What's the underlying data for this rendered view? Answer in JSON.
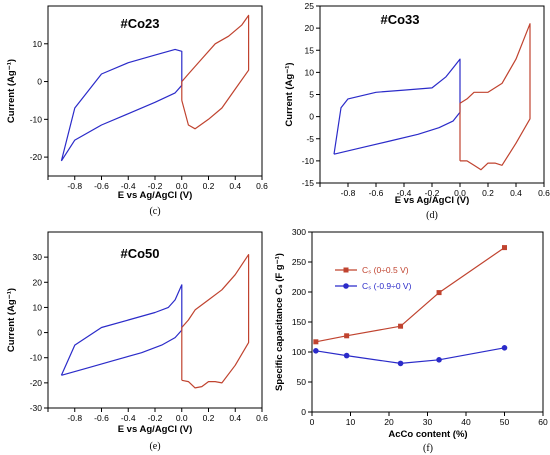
{
  "colors": {
    "red": "#c0432f",
    "blue": "#2b2bc9",
    "axis": "#000000"
  },
  "chart_data": [
    {
      "type": "line",
      "panel_title": "#Co23",
      "caption": "(c)",
      "xlabel": "E vs Ag/AgCl (V)",
      "ylabel": "Current (Ag⁻¹)",
      "xlim": [
        -1.0,
        0.6
      ],
      "ylim": [
        -25,
        20
      ],
      "xticks": [
        -1.0,
        -0.8,
        -0.6,
        -0.4,
        -0.2,
        0.0,
        0.2,
        0.4,
        0.6
      ],
      "xtick_labels": [
        "",
        "-0.8",
        "-0.6",
        "-0.4",
        "-0.2",
        "0.0",
        "0.2",
        "0.4",
        "0.6"
      ],
      "yticks": [
        -20,
        -10,
        0,
        10
      ],
      "ytick_labels": [
        "-20",
        "-10",
        "0",
        "10"
      ],
      "series": [
        {
          "color": "blue",
          "x": [
            -0.9,
            -0.8,
            -0.6,
            -0.4,
            -0.2,
            -0.05,
            0.0,
            0.0,
            -0.05,
            -0.2,
            -0.4,
            -0.6,
            -0.8,
            -0.9
          ],
          "y": [
            -21,
            -15.5,
            -11.5,
            -8.5,
            -5.5,
            -3,
            -1,
            8,
            8.5,
            7,
            5,
            2,
            -7,
            -21
          ]
        },
        {
          "color": "red",
          "x": [
            0.0,
            0.05,
            0.1,
            0.2,
            0.3,
            0.4,
            0.5,
            0.5,
            0.45,
            0.35,
            0.25,
            0.15,
            0.05,
            0.0,
            0.0
          ],
          "y": [
            -5,
            -11.5,
            -12.5,
            -10,
            -7,
            -2,
            3,
            17.5,
            15,
            12,
            10,
            6,
            2,
            0,
            -5
          ]
        }
      ]
    },
    {
      "type": "line",
      "panel_title": "#Co33",
      "caption": "(d)",
      "xlabel": "E vs Ag/AgCl (V)",
      "ylabel": "Current (Ag⁻¹)",
      "xlim": [
        -1.0,
        0.6
      ],
      "ylim": [
        -15,
        25
      ],
      "xticks": [
        -1.0,
        -0.8,
        -0.6,
        -0.4,
        -0.2,
        0.0,
        0.2,
        0.4,
        0.6
      ],
      "xtick_labels": [
        "",
        "-0.8",
        "-0.6",
        "-0.4",
        "-0.2",
        "0.0",
        "0.2",
        "0.4",
        "0.6"
      ],
      "yticks": [
        -15,
        -10,
        -5,
        0,
        5,
        10,
        15,
        20,
        25
      ],
      "ytick_labels": [
        "-15",
        "-10",
        "-5",
        "0",
        "5",
        "10",
        "15",
        "20",
        "25"
      ],
      "series": [
        {
          "color": "blue",
          "x": [
            -0.9,
            -0.7,
            -0.5,
            -0.3,
            -0.15,
            -0.05,
            0.0,
            0.0,
            -0.05,
            -0.1,
            -0.2,
            -0.4,
            -0.6,
            -0.8,
            -0.85,
            -0.9
          ],
          "y": [
            -8.5,
            -7,
            -5.5,
            -4,
            -2.5,
            -1,
            1,
            13,
            11,
            9,
            6.5,
            6,
            5.5,
            4,
            2,
            -8.5
          ]
        },
        {
          "color": "red",
          "x": [
            0.0,
            0.05,
            0.1,
            0.15,
            0.2,
            0.25,
            0.3,
            0.4,
            0.5,
            0.5,
            0.4,
            0.3,
            0.2,
            0.1,
            0.05,
            0.0,
            0.0
          ],
          "y": [
            -10,
            -10,
            -11,
            -12,
            -10.5,
            -10.5,
            -11,
            -6,
            -0.5,
            21,
            13,
            7.5,
            5.5,
            5.5,
            4,
            3,
            -10
          ]
        }
      ]
    },
    {
      "type": "line",
      "panel_title": "#Co50",
      "caption": "(e)",
      "xlabel": "E vs Ag/AgCl (V)",
      "ylabel": "Current (Ag⁻¹)",
      "xlim": [
        -1.0,
        0.6
      ],
      "ylim": [
        -30,
        40
      ],
      "xticks": [
        -1.0,
        -0.8,
        -0.6,
        -0.4,
        -0.2,
        0.0,
        0.2,
        0.4,
        0.6
      ],
      "xtick_labels": [
        "",
        "-0.8",
        "-0.6",
        "-0.4",
        "-0.2",
        "0.0",
        "0.2",
        "0.4",
        "0.6"
      ],
      "yticks": [
        -30,
        -20,
        -10,
        0,
        10,
        20,
        30
      ],
      "ytick_labels": [
        "-30",
        "-20",
        "-10",
        "0",
        "10",
        "20",
        "30"
      ],
      "series": [
        {
          "color": "blue",
          "x": [
            -0.9,
            -0.7,
            -0.5,
            -0.3,
            -0.15,
            -0.05,
            0.0,
            0.0,
            -0.05,
            -0.1,
            -0.2,
            -0.4,
            -0.6,
            -0.8,
            -0.9
          ],
          "y": [
            -17,
            -14,
            -11,
            -8,
            -5,
            -2,
            1,
            19,
            13,
            10,
            8,
            5,
            2,
            -5,
            -17
          ]
        },
        {
          "color": "red",
          "x": [
            0.0,
            0.05,
            0.1,
            0.15,
            0.2,
            0.25,
            0.3,
            0.4,
            0.5,
            0.5,
            0.4,
            0.3,
            0.2,
            0.1,
            0.05,
            0.0,
            0.0
          ],
          "y": [
            -19,
            -19.5,
            -22,
            -21.5,
            -19.5,
            -19.5,
            -20,
            -13,
            -4,
            31,
            23,
            17,
            13,
            9,
            5,
            2,
            -19
          ]
        }
      ]
    },
    {
      "type": "line",
      "caption": "(f)",
      "xlabel": "AcCo content (%)",
      "ylabel": "Specific capacitance Cₛ (F g⁻¹)",
      "xlim": [
        0,
        60
      ],
      "ylim": [
        0,
        300
      ],
      "xticks": [
        0,
        10,
        20,
        30,
        40,
        50,
        60
      ],
      "xtick_labels": [
        "0",
        "10",
        "20",
        "30",
        "40",
        "50",
        "60"
      ],
      "yticks": [
        0,
        50,
        100,
        150,
        200,
        250,
        300
      ],
      "ytick_labels": [
        "0",
        "50",
        "100",
        "150",
        "200",
        "250",
        "300"
      ],
      "legend_position": "top-left",
      "series": [
        {
          "name": "Cₛ (0÷0.5 V)",
          "color": "red",
          "marker": "square",
          "x": [
            1,
            9,
            23,
            33,
            50
          ],
          "y": [
            117,
            127,
            143,
            199,
            274
          ]
        },
        {
          "name": "Cₛ (-0.9÷0 V)",
          "color": "blue",
          "marker": "circle",
          "x": [
            1,
            9,
            23,
            33,
            50
          ],
          "y": [
            102,
            94,
            81,
            87,
            107
          ]
        }
      ]
    }
  ]
}
